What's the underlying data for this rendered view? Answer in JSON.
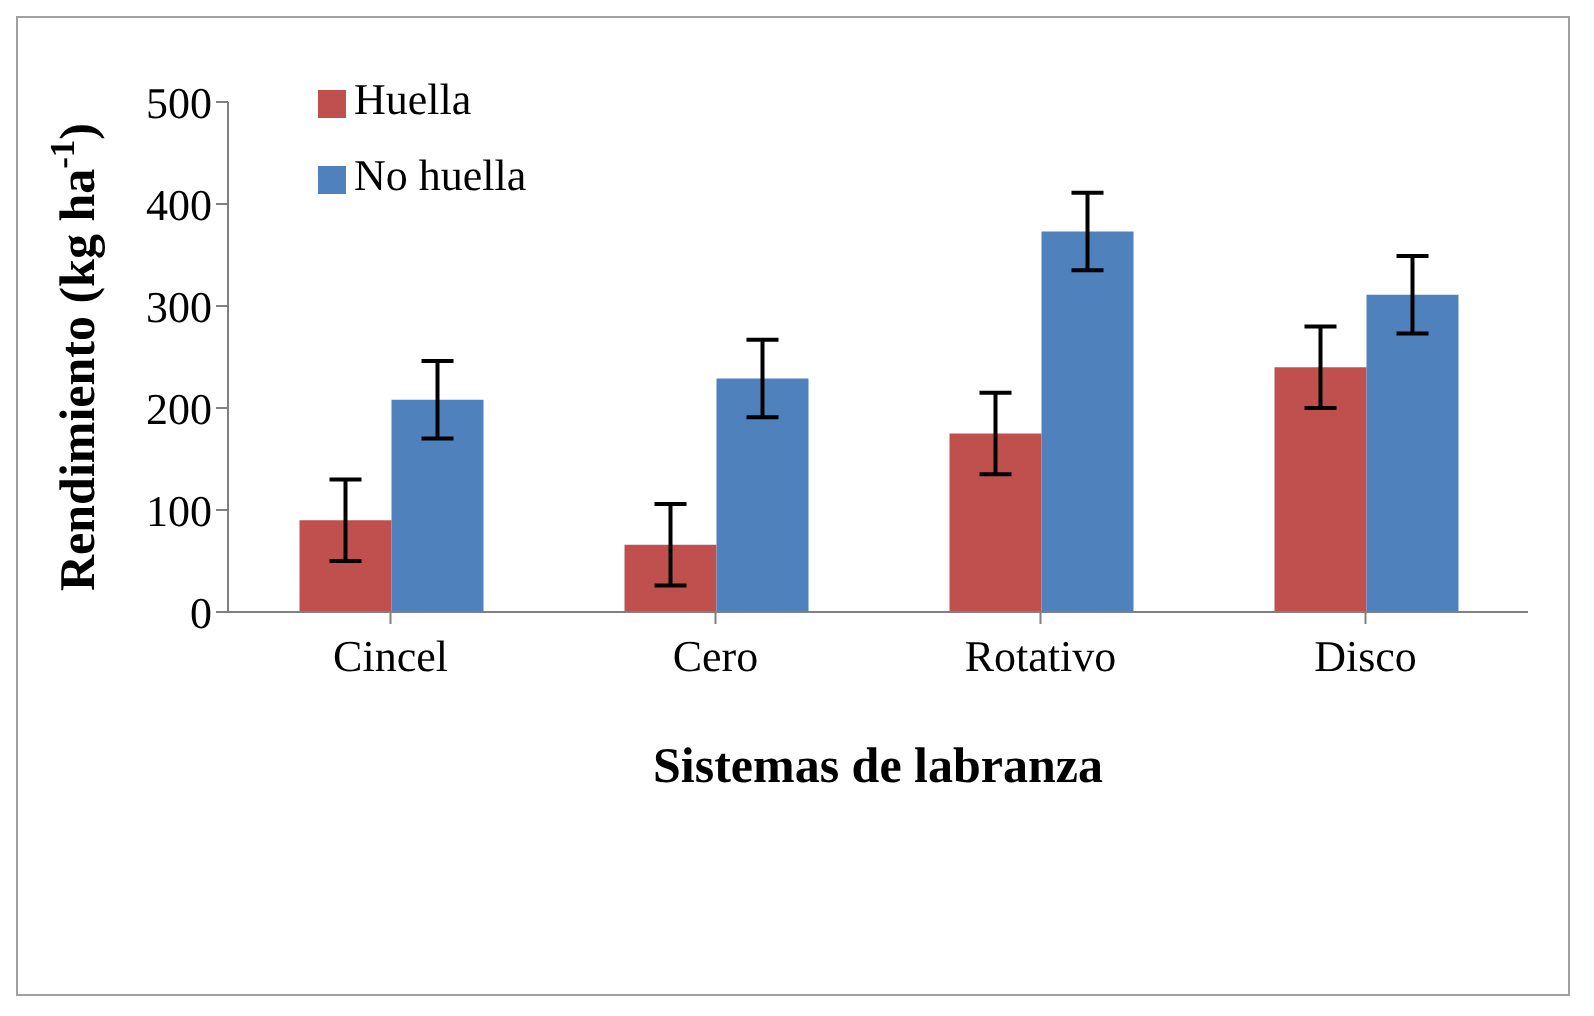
{
  "chart_data": {
    "type": "bar",
    "xlabel": "Sistemas de labranza",
    "ylabel": "Rendimiento (kg ha$^{-1}$)",
    "categories": [
      "Cincel",
      "Cero",
      "Rotativo",
      "Disco"
    ],
    "series": [
      {
        "name": "Huella",
        "color": "#c0504d",
        "values": [
          90,
          66,
          175,
          240
        ],
        "errors": [
          40,
          40,
          40,
          40
        ]
      },
      {
        "name": "No huella",
        "color": "#4f81bd",
        "values": [
          208,
          229,
          373,
          311
        ],
        "errors": [
          38,
          38,
          38,
          38
        ]
      }
    ],
    "ylim": [
      0,
      500
    ],
    "yticks": [
      0,
      100,
      200,
      300,
      400,
      500
    ],
    "grid": false,
    "legend": "top left"
  }
}
